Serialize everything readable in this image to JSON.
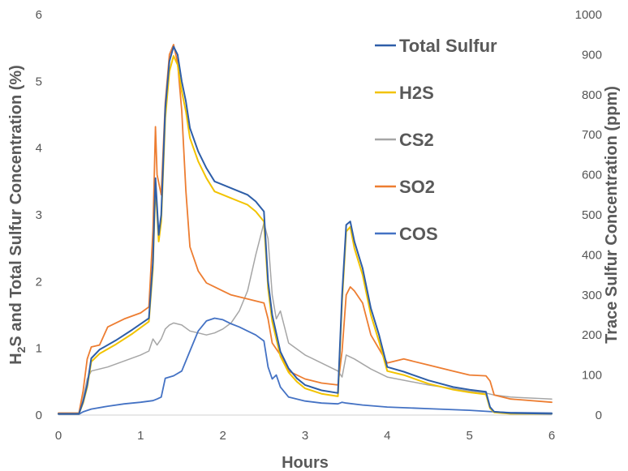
{
  "chart_data": {
    "type": "line",
    "title": "",
    "xlabel": "Hours",
    "ylabel_left_parts": [
      "H",
      "2",
      "S and Total Sulfur Concentration (%)"
    ],
    "ylabel_right": "Trace Sulfur Concentration (ppm)",
    "xlim": [
      0,
      6
    ],
    "ylim_left": [
      0,
      6
    ],
    "ylim_right": [
      0,
      1000
    ],
    "x_ticks": [
      "0",
      "1",
      "2",
      "3",
      "4",
      "5",
      "6"
    ],
    "y_left_ticks": [
      "0",
      "1",
      "2",
      "3",
      "4",
      "5",
      "6"
    ],
    "y_right_ticks": [
      "0",
      "100",
      "200",
      "300",
      "400",
      "500",
      "600",
      "700",
      "800",
      "900",
      "1000"
    ],
    "grid": false,
    "legend_position": "top-right",
    "series": [
      {
        "name": "Total Sulfur",
        "axis": "left",
        "color": "#2e5ea8",
        "x": [
          0,
          0.25,
          0.3,
          0.35,
          0.4,
          0.5,
          0.7,
          0.9,
          1.1,
          1.15,
          1.18,
          1.22,
          1.25,
          1.3,
          1.35,
          1.4,
          1.45,
          1.5,
          1.55,
          1.6,
          1.7,
          1.8,
          1.9,
          2.0,
          2.1,
          2.2,
          2.3,
          2.4,
          2.5,
          2.55,
          2.6,
          2.7,
          2.8,
          2.9,
          3.0,
          3.2,
          3.4,
          3.45,
          3.5,
          3.55,
          3.6,
          3.7,
          3.8,
          3.9,
          4.0,
          4.2,
          4.5,
          4.8,
          5.0,
          5.2,
          5.25,
          5.3,
          5.5,
          6.0
        ],
        "y": [
          0.02,
          0.02,
          0.2,
          0.45,
          0.85,
          0.98,
          1.12,
          1.28,
          1.45,
          2.3,
          3.55,
          2.7,
          3.0,
          4.6,
          5.3,
          5.52,
          5.4,
          5.0,
          4.7,
          4.3,
          3.95,
          3.7,
          3.5,
          3.45,
          3.4,
          3.35,
          3.3,
          3.2,
          3.05,
          2.0,
          1.5,
          0.95,
          0.7,
          0.55,
          0.45,
          0.37,
          0.33,
          1.8,
          2.85,
          2.9,
          2.6,
          2.2,
          1.6,
          1.2,
          0.72,
          0.65,
          0.52,
          0.42,
          0.38,
          0.35,
          0.12,
          0.05,
          0.03,
          0.02
        ]
      },
      {
        "name": "H2S",
        "axis": "left",
        "color": "#f2c300",
        "x": [
          0,
          0.25,
          0.3,
          0.35,
          0.4,
          0.5,
          0.7,
          0.9,
          1.1,
          1.15,
          1.18,
          1.22,
          1.25,
          1.3,
          1.35,
          1.4,
          1.45,
          1.5,
          1.55,
          1.6,
          1.7,
          1.8,
          1.9,
          2.0,
          2.1,
          2.2,
          2.3,
          2.4,
          2.5,
          2.55,
          2.6,
          2.7,
          2.8,
          2.9,
          3.0,
          3.2,
          3.4,
          3.45,
          3.5,
          3.55,
          3.6,
          3.7,
          3.8,
          3.9,
          4.0,
          4.2,
          4.5,
          4.8,
          5.0,
          5.2,
          5.25,
          5.3,
          5.5,
          6.0
        ],
        "y": [
          0.02,
          0.02,
          0.18,
          0.42,
          0.8,
          0.92,
          1.06,
          1.22,
          1.4,
          2.2,
          3.45,
          2.6,
          2.9,
          4.45,
          5.15,
          5.38,
          5.25,
          4.85,
          4.55,
          4.15,
          3.8,
          3.55,
          3.35,
          3.3,
          3.25,
          3.2,
          3.15,
          3.05,
          2.9,
          1.9,
          1.4,
          0.88,
          0.64,
          0.5,
          0.4,
          0.32,
          0.28,
          1.7,
          2.75,
          2.82,
          2.5,
          2.1,
          1.5,
          1.1,
          0.66,
          0.6,
          0.47,
          0.38,
          0.34,
          0.31,
          0.1,
          0.04,
          0.02,
          0.02
        ]
      },
      {
        "name": "CS2",
        "axis": "right",
        "color": "#a6a6a6",
        "x": [
          0,
          0.25,
          0.3,
          0.35,
          0.4,
          0.6,
          0.8,
          1.0,
          1.1,
          1.15,
          1.2,
          1.25,
          1.3,
          1.35,
          1.4,
          1.5,
          1.6,
          1.7,
          1.8,
          1.9,
          2.0,
          2.1,
          2.2,
          2.3,
          2.4,
          2.5,
          2.55,
          2.6,
          2.65,
          2.7,
          2.8,
          3.0,
          3.2,
          3.4,
          3.45,
          3.5,
          3.6,
          3.8,
          4.0,
          4.5,
          5.0,
          5.2,
          5.3,
          5.5,
          6.0
        ],
        "y": [
          3,
          3,
          40,
          90,
          110,
          120,
          135,
          150,
          160,
          190,
          175,
          190,
          215,
          225,
          230,
          225,
          210,
          205,
          200,
          205,
          215,
          230,
          260,
          310,
          400,
          480,
          440,
          300,
          240,
          260,
          180,
          150,
          130,
          110,
          95,
          150,
          140,
          115,
          95,
          75,
          60,
          55,
          50,
          45,
          40
        ]
      },
      {
        "name": "SO2",
        "axis": "right",
        "color": "#ed7d31",
        "x": [
          0,
          0.25,
          0.3,
          0.35,
          0.4,
          0.5,
          0.6,
          0.8,
          1.0,
          1.1,
          1.15,
          1.18,
          1.2,
          1.25,
          1.3,
          1.35,
          1.4,
          1.45,
          1.5,
          1.55,
          1.6,
          1.7,
          1.8,
          1.9,
          2.0,
          2.1,
          2.2,
          2.3,
          2.4,
          2.5,
          2.55,
          2.6,
          2.7,
          2.8,
          3.0,
          3.2,
          3.4,
          3.45,
          3.5,
          3.55,
          3.6,
          3.7,
          3.8,
          4.0,
          4.2,
          4.5,
          4.8,
          5.0,
          5.2,
          5.25,
          5.3,
          5.5,
          6.0
        ],
        "y": [
          5,
          5,
          60,
          140,
          170,
          175,
          220,
          240,
          255,
          270,
          460,
          720,
          600,
          550,
          780,
          900,
          925,
          880,
          760,
          560,
          420,
          360,
          330,
          320,
          310,
          300,
          295,
          290,
          285,
          280,
          240,
          180,
          150,
          110,
          90,
          80,
          75,
          160,
          300,
          320,
          310,
          280,
          200,
          130,
          140,
          125,
          110,
          100,
          98,
          85,
          50,
          40,
          32
        ]
      },
      {
        "name": "COS",
        "axis": "right",
        "color": "#4472c4",
        "x": [
          0,
          0.25,
          0.3,
          0.4,
          0.6,
          0.8,
          1.0,
          1.15,
          1.2,
          1.25,
          1.3,
          1.4,
          1.5,
          1.6,
          1.7,
          1.8,
          1.9,
          2.0,
          2.1,
          2.2,
          2.3,
          2.4,
          2.5,
          2.55,
          2.6,
          2.65,
          2.7,
          2.8,
          3.0,
          3.2,
          3.4,
          3.45,
          3.5,
          3.7,
          4.0,
          4.5,
          5.0,
          5.3,
          5.5,
          6.0
        ],
        "y": [
          2,
          2,
          8,
          15,
          22,
          28,
          32,
          36,
          40,
          45,
          92,
          98,
          110,
          160,
          210,
          235,
          242,
          238,
          228,
          220,
          210,
          200,
          185,
          120,
          90,
          100,
          70,
          45,
          35,
          30,
          28,
          32,
          30,
          25,
          20,
          16,
          12,
          8,
          6,
          5
        ]
      }
    ]
  }
}
